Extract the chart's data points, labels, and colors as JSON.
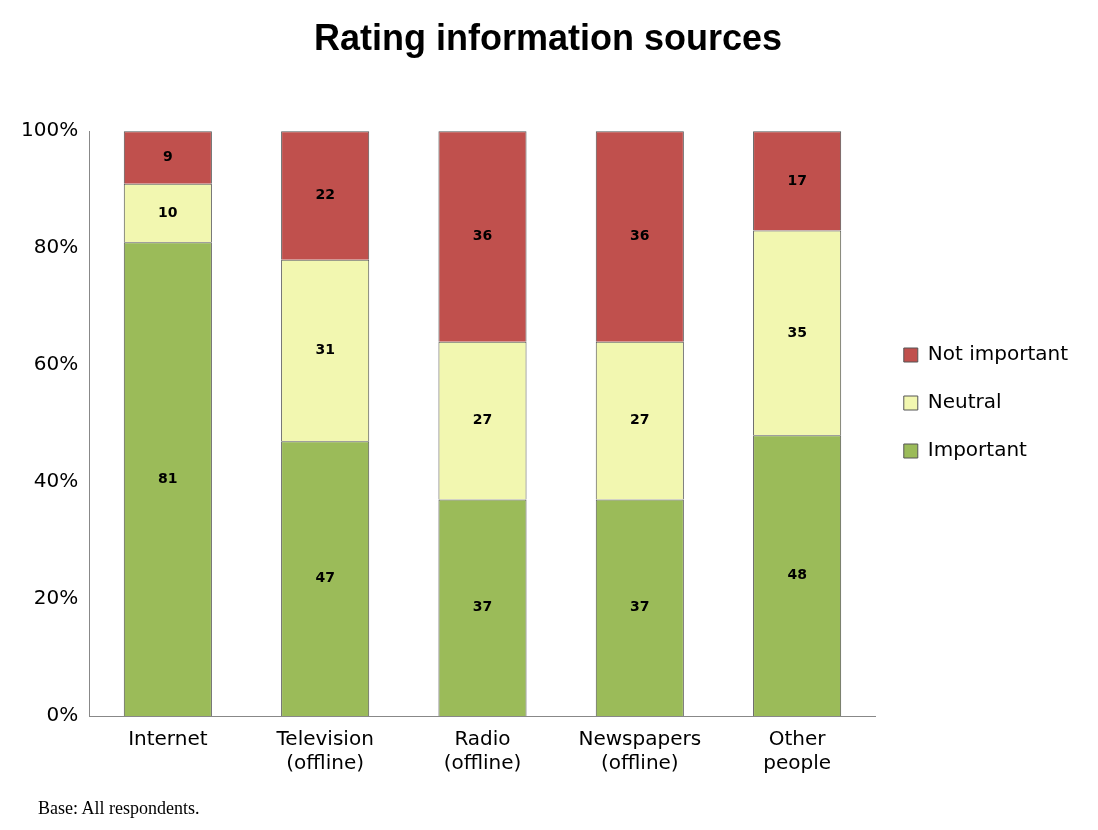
{
  "chart_data": {
    "type": "bar",
    "title": "Rating information sources",
    "categories": [
      "Internet",
      "Television\n(offline)",
      "Radio\n(offline)",
      "Newspapers\n(offline)",
      "Other\npeople"
    ],
    "series": [
      {
        "name": "Important",
        "color": "#9bbb59",
        "values": [
          81,
          47,
          37,
          37,
          48
        ]
      },
      {
        "name": "Neutral",
        "color": "#f2f7b0",
        "values": [
          10,
          31,
          27,
          27,
          35
        ]
      },
      {
        "name": "Not important",
        "color": "#c0504d",
        "values": [
          9,
          22,
          36,
          36,
          17
        ]
      }
    ],
    "stacked": true,
    "ylim": [
      0,
      100
    ],
    "yticks": [
      {
        "value": 0,
        "label": "0%"
      },
      {
        "value": 20,
        "label": "20%"
      },
      {
        "value": 40,
        "label": "40%"
      },
      {
        "value": 60,
        "label": "60%"
      },
      {
        "value": 80,
        "label": "80%"
      },
      {
        "value": 100,
        "label": "100%"
      }
    ],
    "data_labels": true,
    "legend": "right",
    "annotations": [
      "Base: All respondents."
    ]
  }
}
